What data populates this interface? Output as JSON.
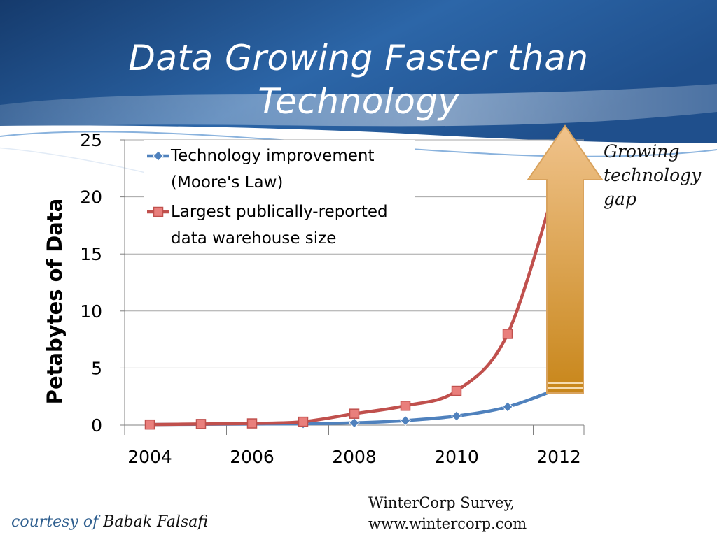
{
  "slide": {
    "title_lines": [
      "Data Growing Faster than",
      "Technology"
    ],
    "annotation": "Growing\ntechnology\ngap",
    "source": "WinterCorp Survey,\nwww.wintercorp.com",
    "credit_prefix": "courtesy of",
    "credit_name": "Babak Falsafi"
  },
  "colors": {
    "header_dark": "#153a6c",
    "header_mid": "#2c66a8",
    "header_light": "#6b9fd4",
    "technology_series": "#4f81bd",
    "warehouse_series": "#c0504d",
    "arrow_top": "#f0c38c",
    "arrow_bottom": "#c8861a",
    "gridline": "#a6a6a6"
  },
  "chart_data": {
    "type": "line",
    "title": "",
    "xlabel": "",
    "ylabel": "Petabytes of Data",
    "x": [
      2004,
      2005,
      2006,
      2007,
      2008,
      2009,
      2010,
      2011,
      2012
    ],
    "xticks": [
      "2004",
      "2006",
      "2008",
      "2010",
      "2012"
    ],
    "yticks": [
      "0",
      "5",
      "10",
      "15",
      "20",
      "25"
    ],
    "ylim": [
      0,
      25
    ],
    "grid": true,
    "legend_position": "top-left",
    "series": [
      {
        "name": "Technology improvement (Moore's Law)",
        "legend_lines": [
          "Technology improvement",
          "(Moore's Law)"
        ],
        "marker": "diamond",
        "values": [
          0.05,
          0.08,
          0.1,
          0.12,
          0.2,
          0.4,
          0.8,
          1.6,
          3.2
        ]
      },
      {
        "name": "Largest publically-reported data warehouse size",
        "legend_lines": [
          "Largest publically-reported",
          "data warehouse size"
        ],
        "marker": "square",
        "values": [
          0.05,
          0.1,
          0.15,
          0.3,
          1.0,
          1.7,
          3.0,
          8.0,
          22.0
        ]
      }
    ],
    "annotations": [
      "Growing technology gap"
    ]
  }
}
